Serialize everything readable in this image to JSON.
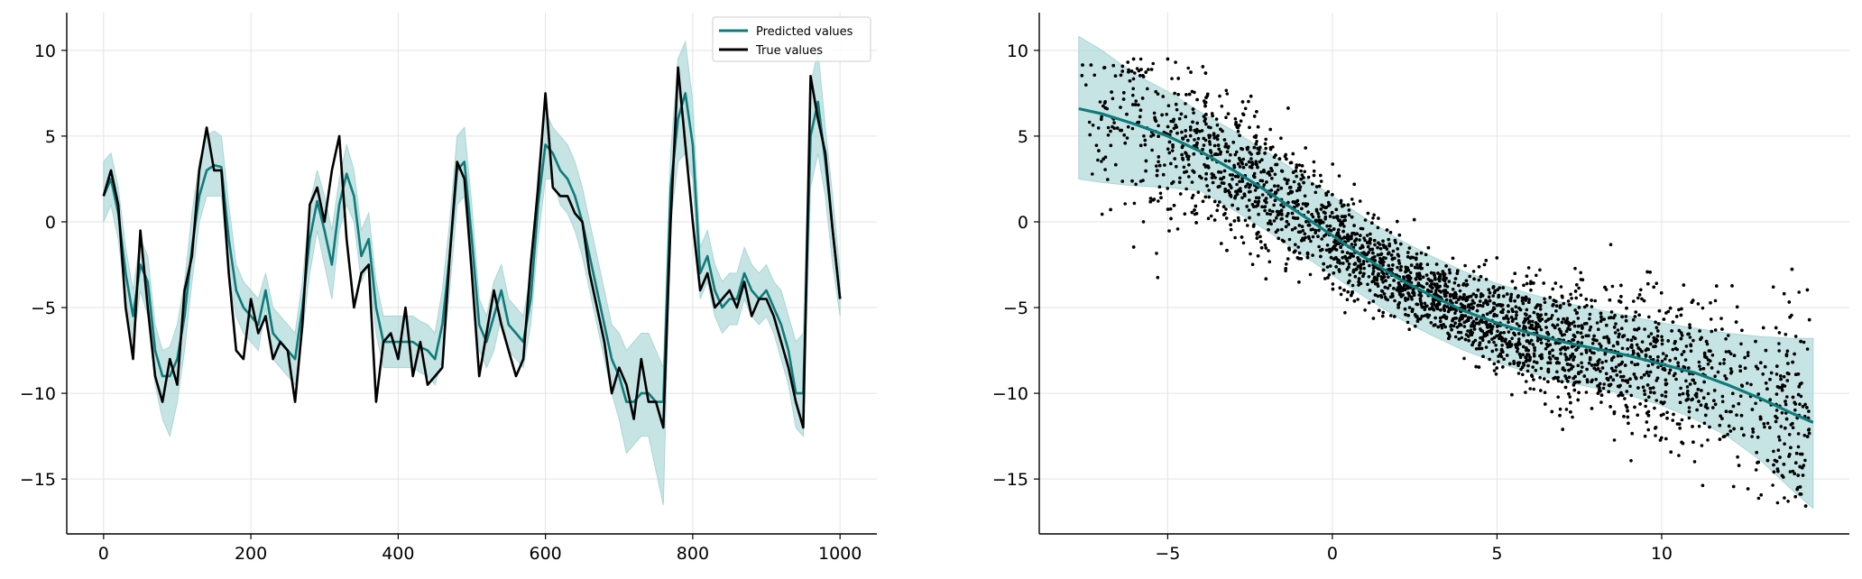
{
  "colors": {
    "predicted": "#0f7b7b",
    "band": "#a9d6d6",
    "true": "#000000",
    "scatter": "#000000",
    "grid": "#e3e3e3"
  },
  "chart_data": [
    {
      "type": "line",
      "xlim": [
        -50,
        1050
      ],
      "ylim": [
        -18.2,
        12.2
      ],
      "xticks": [
        0,
        200,
        400,
        600,
        800,
        1000
      ],
      "yticks": [
        10,
        5,
        0,
        -5,
        -10,
        -15
      ],
      "xtick_labels": [
        "0",
        "200",
        "400",
        "600",
        "800",
        "1000"
      ],
      "ytick_labels": [
        "10",
        "5",
        "0",
        "−5",
        "−10",
        "−15"
      ],
      "grid": true,
      "legend_position": "top-right",
      "legend": [
        "Predicted values",
        "True values"
      ],
      "series": [
        {
          "name": "Predicted values",
          "x": [
            0,
            10,
            20,
            30,
            40,
            50,
            60,
            70,
            80,
            90,
            100,
            110,
            120,
            130,
            140,
            150,
            160,
            170,
            180,
            190,
            200,
            210,
            220,
            230,
            240,
            250,
            260,
            270,
            280,
            290,
            300,
            310,
            320,
            330,
            340,
            350,
            360,
            370,
            380,
            390,
            400,
            410,
            420,
            430,
            440,
            450,
            460,
            470,
            480,
            490,
            500,
            510,
            520,
            530,
            540,
            550,
            560,
            570,
            580,
            590,
            600,
            610,
            620,
            630,
            640,
            650,
            660,
            670,
            680,
            690,
            700,
            710,
            720,
            730,
            740,
            750,
            760,
            770,
            780,
            790,
            800,
            810,
            820,
            830,
            840,
            850,
            860,
            870,
            880,
            890,
            900,
            910,
            920,
            930,
            940,
            950,
            960,
            970,
            980,
            990,
            1000
          ],
          "values": [
            1.5,
            2.5,
            0.5,
            -3.0,
            -5.5,
            -2.5,
            -3.5,
            -7.5,
            -9.0,
            -9.0,
            -8.0,
            -5.5,
            -1.5,
            1.5,
            3.0,
            3.3,
            3.2,
            -1.0,
            -4.0,
            -5.0,
            -5.5,
            -6.0,
            -4.0,
            -6.5,
            -7.0,
            -7.5,
            -8.0,
            -5.0,
            -1.0,
            1.2,
            -0.5,
            -2.5,
            1.0,
            2.8,
            1.5,
            -2.0,
            -1.0,
            -5.0,
            -7.0,
            -7.0,
            -7.0,
            -7.0,
            -7.0,
            -7.3,
            -7.5,
            -8.0,
            -6.0,
            -2.0,
            3.0,
            3.5,
            -1.0,
            -6.0,
            -7.0,
            -5.5,
            -4.0,
            -6.0,
            -6.5,
            -7.0,
            -4.5,
            1.0,
            4.5,
            4.0,
            3.0,
            2.5,
            1.5,
            0.0,
            -2.0,
            -4.0,
            -6.0,
            -8.0,
            -9.0,
            -10.5,
            -10.5,
            -10.0,
            -10.0,
            -10.5,
            -10.5,
            2.0,
            6.0,
            7.5,
            4.5,
            -3.0,
            -2.0,
            -4.0,
            -5.0,
            -4.5,
            -4.5,
            -3.0,
            -4.0,
            -4.5,
            -4.0,
            -5.0,
            -6.0,
            -7.5,
            -10.0,
            -10.0,
            5.0,
            7.0,
            3.5,
            -0.5,
            -4.5
          ],
          "upper": [
            3.5,
            4.0,
            2.0,
            -1.5,
            -4.0,
            -1.0,
            -2.0,
            -6.0,
            -7.5,
            -7.3,
            -6.0,
            -3.5,
            0.5,
            3.5,
            5.0,
            5.3,
            5.0,
            1.0,
            -2.5,
            -3.5,
            -4.0,
            -4.5,
            -3.0,
            -5.0,
            -5.5,
            -6.0,
            -6.5,
            -3.5,
            1.0,
            3.0,
            1.5,
            -0.5,
            2.5,
            4.5,
            3.0,
            -0.5,
            0.5,
            -3.5,
            -5.5,
            -5.5,
            -5.5,
            -5.5,
            -5.5,
            -5.8,
            -6.0,
            -6.5,
            -4.0,
            0.0,
            5.0,
            5.5,
            1.0,
            -4.5,
            -5.5,
            -3.5,
            -2.5,
            -4.5,
            -5.0,
            -5.5,
            -3.0,
            3.0,
            6.5,
            5.5,
            5.0,
            4.5,
            3.5,
            2.0,
            0.0,
            -2.0,
            -4.0,
            -6.0,
            -6.5,
            -7.5,
            -7.0,
            -6.5,
            -6.5,
            -7.5,
            -8.5,
            4.0,
            9.5,
            10.5,
            7.0,
            -1.5,
            -0.5,
            -2.5,
            -3.5,
            -3.0,
            -3.0,
            -1.5,
            -2.5,
            -3.0,
            -2.5,
            -3.5,
            -4.0,
            -5.5,
            -7.0,
            -6.5,
            8.0,
            10.0,
            5.5,
            1.5,
            -3.0
          ],
          "lower": [
            0.0,
            1.0,
            -1.0,
            -4.5,
            -7.0,
            -4.0,
            -5.5,
            -9.5,
            -11.5,
            -12.5,
            -10.5,
            -7.5,
            -3.5,
            0.0,
            1.5,
            1.5,
            1.5,
            -3.0,
            -5.5,
            -6.5,
            -7.0,
            -7.5,
            -5.0,
            -8.0,
            -8.5,
            -9.0,
            -9.5,
            -6.5,
            -3.0,
            -0.5,
            -2.5,
            -4.5,
            -0.5,
            1.0,
            0.0,
            -3.5,
            -2.5,
            -6.5,
            -8.5,
            -8.5,
            -8.5,
            -8.5,
            -8.5,
            -8.8,
            -9.0,
            -9.5,
            -8.0,
            -4.0,
            1.0,
            1.5,
            -2.5,
            -7.5,
            -8.5,
            -7.5,
            -5.5,
            -7.5,
            -8.0,
            -8.5,
            -6.0,
            -1.0,
            2.5,
            2.5,
            1.0,
            0.5,
            -0.5,
            -2.0,
            -4.0,
            -6.0,
            -8.0,
            -10.0,
            -11.5,
            -13.5,
            -13.0,
            -12.5,
            -12.5,
            -14.5,
            -16.5,
            0.0,
            3.5,
            4.0,
            2.5,
            -4.5,
            -3.5,
            -5.5,
            -6.5,
            -6.0,
            -6.0,
            -4.5,
            -5.5,
            -6.0,
            -5.5,
            -6.5,
            -8.0,
            -9.5,
            -12.0,
            -12.5,
            2.0,
            4.0,
            1.5,
            -2.5,
            -5.5
          ]
        },
        {
          "name": "True values",
          "x": [
            0,
            10,
            20,
            30,
            40,
            50,
            60,
            70,
            80,
            90,
            100,
            110,
            120,
            130,
            140,
            150,
            160,
            170,
            180,
            190,
            200,
            210,
            220,
            230,
            240,
            250,
            260,
            270,
            280,
            290,
            300,
            310,
            320,
            330,
            340,
            350,
            360,
            370,
            380,
            390,
            400,
            410,
            420,
            430,
            440,
            450,
            460,
            470,
            480,
            490,
            500,
            510,
            520,
            530,
            540,
            550,
            560,
            570,
            580,
            590,
            600,
            610,
            620,
            630,
            640,
            650,
            660,
            670,
            680,
            690,
            700,
            710,
            720,
            730,
            740,
            750,
            760,
            770,
            780,
            790,
            800,
            810,
            820,
            830,
            840,
            850,
            860,
            870,
            880,
            890,
            900,
            910,
            920,
            930,
            940,
            950,
            960,
            970,
            980,
            990,
            1000
          ],
          "values": [
            1.5,
            3.0,
            1.0,
            -5.0,
            -8.0,
            -0.5,
            -5.0,
            -9.0,
            -10.5,
            -8.0,
            -9.5,
            -4.0,
            -2.0,
            3.0,
            5.5,
            3.0,
            3.0,
            -3.0,
            -7.5,
            -8.0,
            -4.5,
            -6.5,
            -5.5,
            -8.0,
            -7.0,
            -7.5,
            -10.5,
            -6.0,
            1.0,
            2.0,
            0.0,
            3.0,
            5.0,
            -1.0,
            -5.0,
            -3.0,
            -2.5,
            -10.5,
            -7.0,
            -6.5,
            -8.0,
            -5.0,
            -9.0,
            -7.0,
            -9.5,
            -9.0,
            -8.5,
            -2.0,
            3.5,
            2.5,
            -3.0,
            -9.0,
            -6.5,
            -4.0,
            -6.0,
            -7.5,
            -9.0,
            -8.0,
            -2.5,
            2.0,
            7.5,
            2.0,
            1.5,
            1.5,
            0.5,
            0.0,
            -3.0,
            -5.0,
            -7.0,
            -10.0,
            -8.5,
            -9.5,
            -11.5,
            -8.0,
            -10.5,
            -10.5,
            -12.0,
            0.0,
            9.0,
            4.5,
            0.0,
            -4.0,
            -3.0,
            -5.0,
            -4.5,
            -4.0,
            -5.0,
            -3.5,
            -5.5,
            -4.5,
            -4.5,
            -5.5,
            -7.0,
            -8.5,
            -10.5,
            -12.0,
            8.5,
            6.0,
            4.0,
            -0.5,
            -4.5
          ]
        }
      ]
    },
    {
      "type": "scatter",
      "xlim": [
        -8.9,
        15.7
      ],
      "ylim": [
        -18.2,
        12.2
      ],
      "xticks": [
        -5,
        0,
        5,
        10
      ],
      "yticks": [
        10,
        5,
        0,
        -5,
        -10,
        -15
      ],
      "xtick_labels": [
        "−5",
        "0",
        "5",
        "10"
      ],
      "ytick_labels": [
        "10",
        "5",
        "0",
        "−5",
        "−10",
        "−15"
      ],
      "grid": true,
      "fit_x": [
        -7.7,
        -7,
        -6,
        -5,
        -4,
        -3,
        -2,
        -1,
        0,
        1,
        2,
        3,
        4,
        5,
        6,
        7,
        8,
        9,
        10,
        11,
        12,
        13,
        14,
        14.6
      ],
      "fit_y": [
        6.6,
        6.3,
        5.7,
        5.0,
        4.1,
        3.0,
        1.8,
        0.5,
        -0.8,
        -2.1,
        -3.3,
        -4.3,
        -5.2,
        -5.9,
        -6.5,
        -7.0,
        -7.4,
        -7.8,
        -8.3,
        -8.8,
        -9.5,
        -10.3,
        -11.2,
        -11.7
      ],
      "fit_upper": [
        10.8,
        10.0,
        8.6,
        7.6,
        6.4,
        5.3,
        4.1,
        2.8,
        1.5,
        0.2,
        -1.0,
        -2.0,
        -2.9,
        -3.6,
        -4.2,
        -4.7,
        -5.1,
        -5.5,
        -5.9,
        -6.2,
        -6.5,
        -6.7,
        -6.8,
        -6.8
      ],
      "fit_lower": [
        2.5,
        2.3,
        2.1,
        2.0,
        1.8,
        0.7,
        -0.5,
        -1.8,
        -3.1,
        -4.4,
        -5.6,
        -6.6,
        -7.5,
        -8.2,
        -8.8,
        -9.3,
        -9.7,
        -10.1,
        -10.7,
        -11.5,
        -12.5,
        -13.9,
        -15.7,
        -16.7
      ],
      "scatter_x_range": [
        -7.7,
        14.5
      ],
      "scatter_y_range": [
        -16.8,
        9.5
      ]
    }
  ]
}
